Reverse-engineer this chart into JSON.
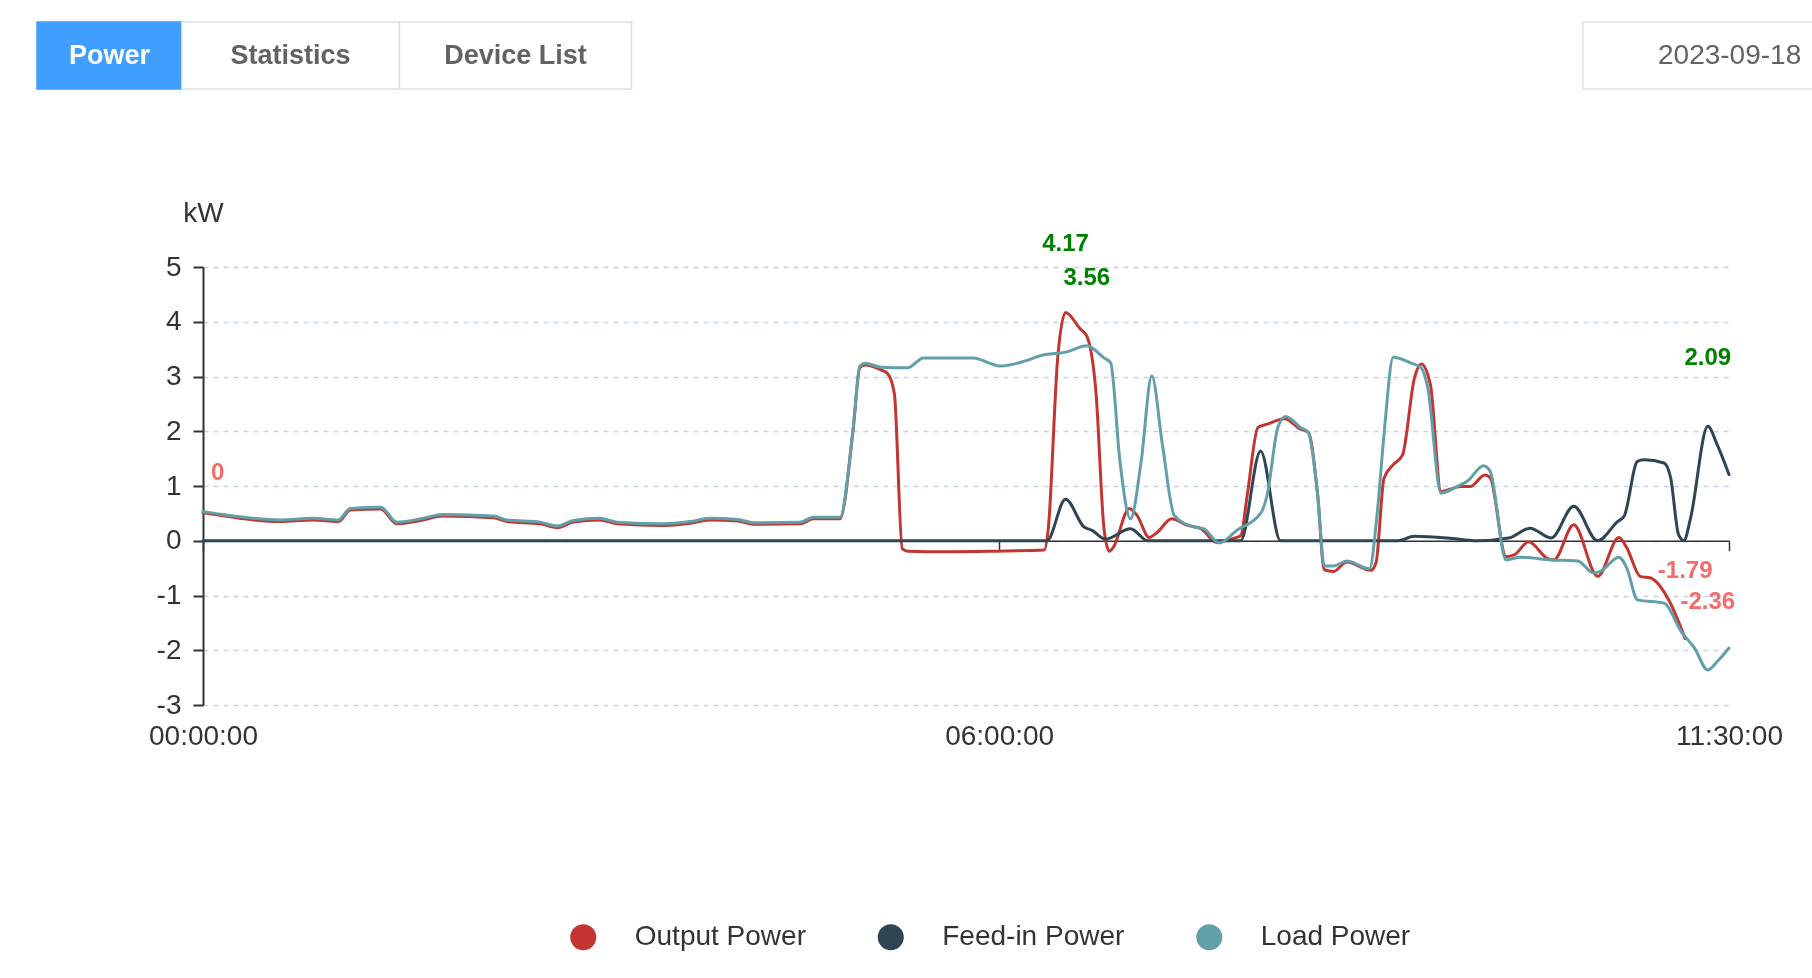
{
  "chart_data": {
    "type": "line",
    "ylabel": "kW",
    "xlim": [
      0,
      11.5
    ],
    "ylim": [
      -3,
      5
    ],
    "xticks": [
      {
        "value": 0,
        "label": "00:00:00"
      },
      {
        "value": 6,
        "label": "06:00:00"
      },
      {
        "value": 11.5,
        "label": "11:30:00"
      }
    ],
    "yticks": [
      -3,
      -2,
      -1,
      0,
      1,
      2,
      3,
      4,
      5
    ],
    "grid": "y",
    "legend": "bottom",
    "series": [
      {
        "name": "Output Power",
        "color": "#c23531",
        "x": [
          0,
          0.09,
          0.31,
          0.58,
          0.83,
          1.02,
          1.11,
          1.34,
          1.46,
          1.64,
          1.81,
          2.19,
          2.29,
          2.54,
          2.67,
          2.79,
          2.99,
          3.12,
          3.47,
          3.67,
          3.82,
          4.03,
          4.15,
          4.5,
          4.6,
          4.8,
          4.9,
          4.95,
          4.99,
          5.11,
          5.16,
          5.21,
          5.27,
          5.31,
          5.61,
          5.96,
          6.34,
          6.37,
          6.44,
          6.5,
          6.61,
          6.66,
          6.73,
          6.79,
          6.83,
          6.86,
          6.98,
          7.04,
          7.13,
          7.19,
          7.3,
          7.42,
          7.52,
          7.64,
          7.74,
          7.82,
          7.87,
          7.95,
          8.02,
          8.15,
          8.27,
          8.33,
          8.4,
          8.45,
          8.52,
          8.62,
          8.8,
          8.84,
          8.9,
          8.97,
          9.04,
          9.13,
          9.18,
          9.25,
          9.33,
          9.48,
          9.55,
          9.66,
          9.7,
          9.82,
          9.88,
          9.99,
          10.13,
          10.18,
          10.33,
          10.51,
          10.67,
          10.73,
          10.83,
          10.91,
          11.05,
          11.17
        ],
        "values": [
          0.51,
          0.48,
          0.4,
          0.35,
          0.38,
          0.35,
          0.56,
          0.58,
          0.31,
          0.37,
          0.45,
          0.42,
          0.35,
          0.31,
          0.24,
          0.34,
          0.38,
          0.31,
          0.28,
          0.32,
          0.38,
          0.36,
          0.3,
          0.31,
          0.4,
          0.4,
          2.04,
          3.16,
          3.21,
          3.12,
          3.05,
          2.69,
          -0.15,
          -0.19,
          -0.2,
          -0.19,
          -0.17,
          0.22,
          3.31,
          4.17,
          3.87,
          3.74,
          2.69,
          0.22,
          -0.19,
          -0.12,
          0.59,
          0.46,
          0.06,
          0.15,
          0.4,
          0.28,
          0.22,
          -0.03,
          0.03,
          0.09,
          0.84,
          2.07,
          2.13,
          2.23,
          2.04,
          1.98,
          0.84,
          -0.53,
          -0.56,
          -0.39,
          -0.54,
          -0.4,
          1.14,
          1.39,
          1.57,
          2.98,
          3.23,
          2.85,
          0.9,
          0.99,
          0.99,
          1.2,
          1.15,
          -0.29,
          -0.26,
          -0.02,
          -0.32,
          -0.35,
          0.29,
          -0.65,
          0.06,
          -0.13,
          -0.65,
          -0.68,
          -1.1,
          -1.79
        ]
      },
      {
        "name": "Feed-in Power",
        "color": "#2f4554",
        "x": [
          0,
          6.36,
          6.5,
          6.64,
          6.7,
          6.8,
          6.99,
          7.12,
          7.82,
          7.97,
          8.12,
          9.0,
          9.13,
          9.38,
          9.6,
          9.84,
          10.0,
          10.16,
          10.33,
          10.51,
          10.66,
          10.71,
          10.81,
          10.86,
          11.01,
          11.06,
          11.12,
          11.16,
          11.21,
          11.34,
          11.41,
          11.5
        ],
        "values": [
          0,
          0,
          0.76,
          0.25,
          0.19,
          0.03,
          0.22,
          0,
          0,
          1.64,
          0,
          0,
          0.08,
          0.05,
          0,
          0.05,
          0.23,
          0.05,
          0.63,
          0,
          0.35,
          0.45,
          1.45,
          1.48,
          1.42,
          1.15,
          0.11,
          0,
          0.41,
          2.09,
          1.76,
          1.21
        ]
      },
      {
        "name": "Load Power",
        "color": "#61a0a8",
        "x": [
          0,
          0.09,
          0.31,
          0.58,
          0.83,
          1.02,
          1.11,
          1.34,
          1.46,
          1.64,
          1.81,
          2.19,
          2.29,
          2.54,
          2.67,
          2.79,
          2.99,
          3.12,
          3.47,
          3.67,
          3.82,
          4.03,
          4.15,
          4.5,
          4.6,
          4.8,
          4.9,
          4.95,
          4.99,
          5.11,
          5.31,
          5.43,
          5.81,
          5.92,
          6.01,
          6.19,
          6.31,
          6.51,
          6.66,
          6.79,
          6.84,
          6.91,
          6.99,
          7.07,
          7.15,
          7.23,
          7.32,
          7.47,
          7.54,
          7.66,
          7.79,
          7.97,
          8.02,
          8.1,
          8.16,
          8.27,
          8.33,
          8.4,
          8.45,
          8.52,
          8.62,
          8.79,
          8.85,
          8.9,
          8.97,
          9.1,
          9.18,
          9.23,
          9.33,
          9.45,
          9.53,
          9.65,
          9.7,
          9.82,
          9.93,
          10.16,
          10.36,
          10.48,
          10.53,
          10.67,
          10.73,
          10.81,
          11.01,
          11.14,
          11.24,
          11.34,
          11.41,
          11.5
        ],
        "values": [
          0.53,
          0.5,
          0.43,
          0.38,
          0.41,
          0.38,
          0.59,
          0.61,
          0.34,
          0.4,
          0.48,
          0.45,
          0.38,
          0.34,
          0.27,
          0.37,
          0.41,
          0.34,
          0.31,
          0.35,
          0.41,
          0.39,
          0.33,
          0.34,
          0.43,
          0.43,
          2.07,
          3.19,
          3.24,
          3.17,
          3.16,
          3.34,
          3.34,
          3.25,
          3.19,
          3.28,
          3.38,
          3.45,
          3.56,
          3.34,
          3.25,
          1.45,
          0.4,
          1.45,
          3.01,
          1.76,
          0.46,
          0.25,
          0.22,
          -0.04,
          0.19,
          0.5,
          0.84,
          2.07,
          2.27,
          2.07,
          1.98,
          0.84,
          -0.46,
          -0.46,
          -0.37,
          -0.51,
          0.53,
          1.94,
          3.35,
          3.25,
          3.16,
          2.79,
          0.87,
          0.99,
          1.09,
          1.37,
          1.27,
          -0.35,
          -0.3,
          -0.35,
          -0.37,
          -0.59,
          -0.56,
          -0.3,
          -0.5,
          -1.08,
          -1.14,
          -1.66,
          -1.96,
          -2.36,
          -2.21,
          -1.96
        ]
      }
    ],
    "annotations": [
      "Power",
      "Statistics",
      "Device List",
      "2023-09-18",
      {
        "text": "4.17",
        "x": 6.5,
        "y": 4.17
      },
      {
        "text": "-1.79",
        "x": 11.17,
        "y": -1.79
      },
      {
        "text": "2.09",
        "x": 11.34,
        "y": 2.09
      },
      {
        "text": "0",
        "x": 0,
        "y": 0
      },
      {
        "text": "3.56",
        "x": 6.66,
        "y": 3.56
      },
      {
        "text": "-2.36",
        "x": 11.34,
        "y": -2.36
      }
    ]
  }
}
